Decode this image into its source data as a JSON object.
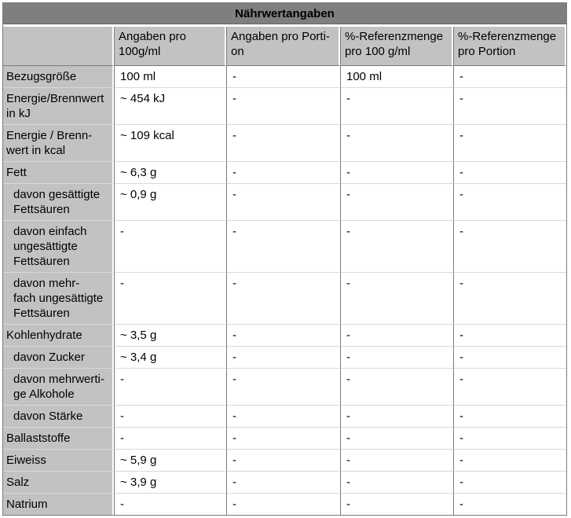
{
  "table": {
    "title": "Nährwertangaben",
    "columns": [
      "",
      "Angaben pro\n100g/ml",
      "Angaben pro Porti-\non",
      "%-Referenzmenge\npro 100 g/ml",
      "%-Referenzmenge\npro Portion"
    ],
    "rows": [
      {
        "label": "Bezugsgröße",
        "indent": false,
        "values": [
          "100 ml",
          "-",
          "100 ml",
          "-"
        ]
      },
      {
        "label": "Energie/Brennwert\nin kJ",
        "indent": false,
        "values": [
          "~ 454 kJ",
          "-",
          "-",
          "-"
        ]
      },
      {
        "label": "Energie / Brenn-\nwert in kcal",
        "indent": false,
        "values": [
          "~ 109 kcal",
          "-",
          "-",
          "-"
        ]
      },
      {
        "label": "Fett",
        "indent": false,
        "values": [
          "~ 6,3 g",
          "-",
          "-",
          "-"
        ]
      },
      {
        "label": "davon gesättigte\nFettsäuren",
        "indent": true,
        "values": [
          "~ 0,9 g",
          "-",
          "-",
          "-"
        ]
      },
      {
        "label": "davon einfach\nungesättigte\nFettsäuren",
        "indent": true,
        "values": [
          "-",
          "-",
          "-",
          "-"
        ]
      },
      {
        "label": "davon mehr-\nfach ungesättigte\nFettsäuren",
        "indent": true,
        "values": [
          "-",
          "-",
          "-",
          "-"
        ]
      },
      {
        "label": "Kohlenhydrate",
        "indent": false,
        "values": [
          "~ 3,5 g",
          "-",
          "-",
          "-"
        ]
      },
      {
        "label": "davon Zucker",
        "indent": true,
        "values": [
          "~ 3,4 g",
          "-",
          "-",
          "-"
        ]
      },
      {
        "label": "davon mehrwerti-\nge Alkohole",
        "indent": true,
        "values": [
          "-",
          "-",
          "-",
          "-"
        ]
      },
      {
        "label": "davon Stärke",
        "indent": true,
        "values": [
          "-",
          "-",
          "-",
          "-"
        ]
      },
      {
        "label": "Ballaststoffe",
        "indent": false,
        "values": [
          "-",
          "-",
          "-",
          "-"
        ]
      },
      {
        "label": "Eiweiss",
        "indent": false,
        "values": [
          "~ 5,9 g",
          "-",
          "-",
          "-"
        ]
      },
      {
        "label": "Salz",
        "indent": false,
        "values": [
          "~ 3,9 g",
          "-",
          "-",
          "-"
        ]
      },
      {
        "label": "Natrium",
        "indent": false,
        "values": [
          "-",
          "-",
          "-",
          "-"
        ]
      }
    ]
  },
  "colors": {
    "title_bg": "#7f7f7f",
    "header_bg": "#c2c2c2",
    "border_dark": "#7b7b7b",
    "border_light": "#d9d9d9",
    "title_edge": "#686868"
  }
}
